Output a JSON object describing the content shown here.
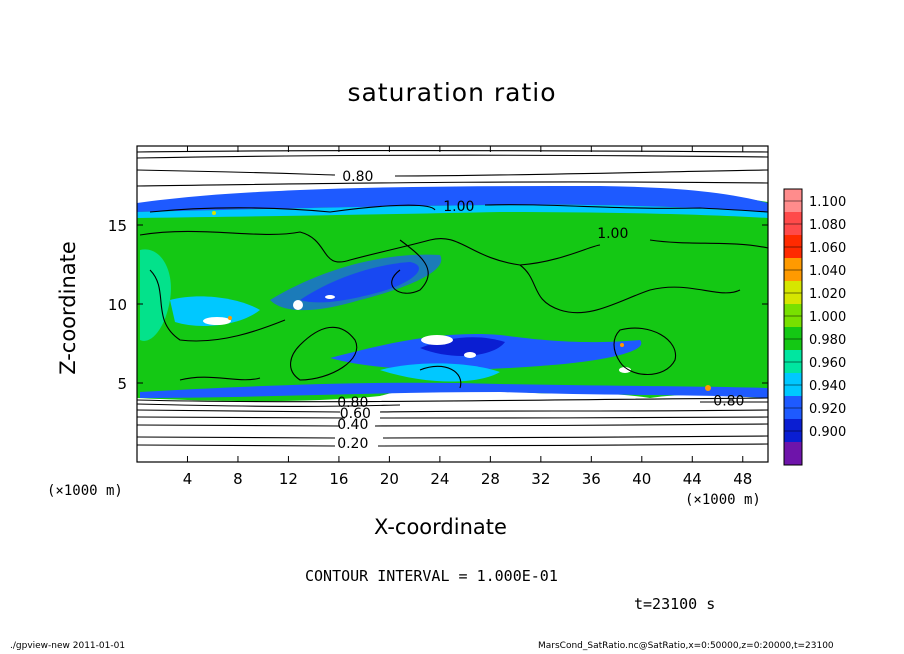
{
  "chart_data": {
    "type": "heatmap",
    "title": "saturation ratio",
    "xlabel": "X-coordinate",
    "ylabel": "Z-coordinate",
    "x_unit": "(×1000 m)",
    "y_unit": "",
    "xlim": [
      0,
      50
    ],
    "ylim": [
      0,
      20
    ],
    "x_ticks": [
      4,
      8,
      12,
      16,
      20,
      24,
      28,
      32,
      36,
      40,
      44,
      48
    ],
    "y_ticks": [
      5,
      10,
      15
    ],
    "colorbar": {
      "levels": [
        "1.100",
        "1.080",
        "1.060",
        "1.040",
        "1.020",
        "1.000",
        "0.980",
        "0.960",
        "0.940",
        "0.920",
        "0.900"
      ],
      "colors": [
        "#ff8c8c",
        "#ff4a4a",
        "#ff2a00",
        "#ff9a00",
        "#d6e600",
        "#78e000",
        "#14c814",
        "#00e6a0",
        "#00c8ff",
        "#1e5aff",
        "#0a1ed2",
        "#6e14aa"
      ]
    },
    "contour_labels": [
      {
        "text": "0.80",
        "x": 17.5,
        "y": 18.1
      },
      {
        "text": "1.00",
        "x": 25.5,
        "y": 16.2
      },
      {
        "text": "1.00",
        "x": 37.7,
        "y": 14.5
      },
      {
        "text": "0.80",
        "x": 17.1,
        "y": 3.8
      },
      {
        "text": "0.60",
        "x": 17.3,
        "y": 3.1
      },
      {
        "text": "0.40",
        "x": 17.1,
        "y": 2.4
      },
      {
        "text": "0.20",
        "x": 17.1,
        "y": 1.2
      },
      {
        "text": "0.80",
        "x": 46.9,
        "y": 3.9
      }
    ],
    "contour_interval": "CONTOUR INTERVAL = 1.000E-01",
    "time": "t=23100 s"
  },
  "footer": {
    "left": "./gpview-new  2011-01-01",
    "right": "MarsCond_SatRatio.nc@SatRatio,x=0:50000,z=0:20000,t=23100"
  }
}
